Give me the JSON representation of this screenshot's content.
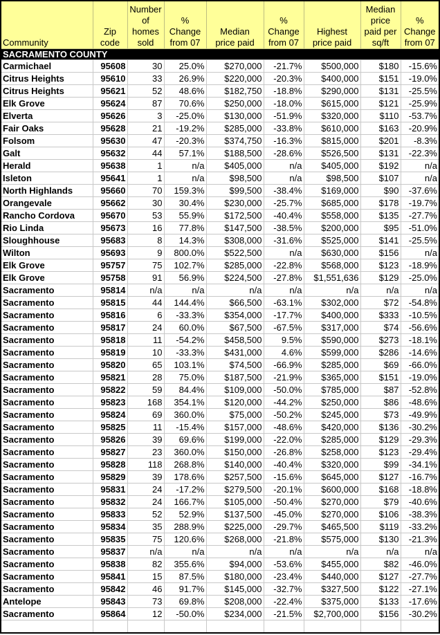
{
  "columns": [
    "Community",
    "Zip\ncode",
    "Number\nof\nhomes\nsold",
    "%\nChange\nfrom 07",
    "Median\nprice paid",
    "%\nChange\nfrom 07",
    "Highest\nprice paid",
    "Median\nprice\npaid per\nsq/ft",
    "%\nChange\nfrom 07"
  ],
  "section": "SACRAMENTO COUNTY",
  "rows": [
    [
      "Carmichael",
      "95608",
      "30",
      "25.0%",
      "$270,000",
      "-21.7%",
      "$500,000",
      "$180",
      "-15.6%"
    ],
    [
      "Citrus Heights",
      "95610",
      "33",
      "26.9%",
      "$220,000",
      "-20.3%",
      "$400,000",
      "$151",
      "-19.0%"
    ],
    [
      "Citrus Heights",
      "95621",
      "52",
      "48.6%",
      "$182,750",
      "-18.8%",
      "$290,000",
      "$131",
      "-25.5%"
    ],
    [
      "Elk Grove",
      "95624",
      "87",
      "70.6%",
      "$250,000",
      "-18.0%",
      "$615,000",
      "$121",
      "-25.9%"
    ],
    [
      "Elverta",
      "95626",
      "3",
      "-25.0%",
      "$130,000",
      "-51.9%",
      "$320,000",
      "$110",
      "-53.7%"
    ],
    [
      "Fair Oaks",
      "95628",
      "21",
      "-19.2%",
      "$285,000",
      "-33.8%",
      "$610,000",
      "$163",
      "-20.9%"
    ],
    [
      "Folsom",
      "95630",
      "47",
      "-20.3%",
      "$374,750",
      "-16.3%",
      "$815,000",
      "$201",
      "-8.3%"
    ],
    [
      "Galt",
      "95632",
      "44",
      "57.1%",
      "$188,500",
      "-28.6%",
      "$526,500",
      "$131",
      "-22.3%"
    ],
    [
      "Herald",
      "95638",
      "1",
      "n/a",
      "$405,000",
      "n/a",
      "$405,000",
      "$192",
      "n/a"
    ],
    [
      "Isleton",
      "95641",
      "1",
      "n/a",
      "$98,500",
      "n/a",
      "$98,500",
      "$107",
      "n/a"
    ],
    [
      "North Highlands",
      "95660",
      "70",
      "159.3%",
      "$99,500",
      "-38.4%",
      "$169,000",
      "$90",
      "-37.6%"
    ],
    [
      "Orangevale",
      "95662",
      "30",
      "30.4%",
      "$230,000",
      "-25.7%",
      "$685,000",
      "$178",
      "-19.7%"
    ],
    [
      "Rancho Cordova",
      "95670",
      "53",
      "55.9%",
      "$172,500",
      "-40.4%",
      "$558,000",
      "$135",
      "-27.7%"
    ],
    [
      "Rio Linda",
      "95673",
      "16",
      "77.8%",
      "$147,500",
      "-38.5%",
      "$200,000",
      "$95",
      "-51.0%"
    ],
    [
      "Sloughhouse",
      "95683",
      "8",
      "14.3%",
      "$308,000",
      "-31.6%",
      "$525,000",
      "$141",
      "-25.5%"
    ],
    [
      "Wilton",
      "95693",
      "9",
      "800.0%",
      "$522,500",
      "n/a",
      "$630,000",
      "$156",
      "n/a"
    ],
    [
      "Elk Grove",
      "95757",
      "75",
      "102.7%",
      "$285,000",
      "-22.8%",
      "$568,000",
      "$123",
      "-18.9%"
    ],
    [
      "Elk Grove",
      "95758",
      "91",
      "56.9%",
      "$224,500",
      "-27.8%",
      "$1,551,636",
      "$129",
      "-25.0%"
    ],
    [
      "Sacramento",
      "95814",
      "n/a",
      "n/a",
      "n/a",
      "n/a",
      "n/a",
      "n/a",
      "n/a"
    ],
    [
      "Sacramento",
      "95815",
      "44",
      "144.4%",
      "$66,500",
      "-63.1%",
      "$302,000",
      "$72",
      "-54.8%"
    ],
    [
      "Sacramento",
      "95816",
      "6",
      "-33.3%",
      "$354,000",
      "-17.7%",
      "$400,000",
      "$333",
      "-10.5%"
    ],
    [
      "Sacramento",
      "95817",
      "24",
      "60.0%",
      "$67,500",
      "-67.5%",
      "$317,000",
      "$74",
      "-56.6%"
    ],
    [
      "Sacramento",
      "95818",
      "11",
      "-54.2%",
      "$458,500",
      "9.5%",
      "$590,000",
      "$273",
      "-18.1%"
    ],
    [
      "Sacramento",
      "95819",
      "10",
      "-33.3%",
      "$431,000",
      "4.6%",
      "$599,000",
      "$286",
      "-14.6%"
    ],
    [
      "Sacramento",
      "95820",
      "65",
      "103.1%",
      "$74,500",
      "-66.9%",
      "$285,000",
      "$69",
      "-66.0%"
    ],
    [
      "Sacramento",
      "95821",
      "28",
      "75.0%",
      "$187,500",
      "-21.9%",
      "$365,000",
      "$151",
      "-19.0%"
    ],
    [
      "Sacramento",
      "95822",
      "59",
      "84.4%",
      "$109,000",
      "-50.0%",
      "$785,000",
      "$87",
      "-52.8%"
    ],
    [
      "Sacramento",
      "95823",
      "168",
      "354.1%",
      "$120,000",
      "-44.2%",
      "$250,000",
      "$86",
      "-48.6%"
    ],
    [
      "Sacramento",
      "95824",
      "69",
      "360.0%",
      "$75,000",
      "-50.2%",
      "$245,000",
      "$73",
      "-49.9%"
    ],
    [
      "Sacramento",
      "95825",
      "11",
      "-15.4%",
      "$157,000",
      "-48.6%",
      "$420,000",
      "$136",
      "-30.2%"
    ],
    [
      "Sacramento",
      "95826",
      "39",
      "69.6%",
      "$199,000",
      "-22.0%",
      "$285,000",
      "$129",
      "-29.3%"
    ],
    [
      "Sacramento",
      "95827",
      "23",
      "360.0%",
      "$150,000",
      "-26.8%",
      "$258,000",
      "$123",
      "-29.4%"
    ],
    [
      "Sacramento",
      "95828",
      "118",
      "268.8%",
      "$140,000",
      "-40.4%",
      "$320,000",
      "$99",
      "-34.1%"
    ],
    [
      "Sacramento",
      "95829",
      "39",
      "178.6%",
      "$257,500",
      "-15.6%",
      "$645,000",
      "$127",
      "-16.7%"
    ],
    [
      "Sacramento",
      "95831",
      "24",
      "-17.2%",
      "$279,500",
      "-20.1%",
      "$600,000",
      "$168",
      "-18.8%"
    ],
    [
      "Sacramento",
      "95832",
      "24",
      "166.7%",
      "$105,000",
      "-50.4%",
      "$270,000",
      "$79",
      "-40.6%"
    ],
    [
      "Sacramento",
      "95833",
      "52",
      "52.9%",
      "$137,500",
      "-45.0%",
      "$270,000",
      "$106",
      "-38.3%"
    ],
    [
      "Sacramento",
      "95834",
      "35",
      "288.9%",
      "$225,000",
      "-29.7%",
      "$465,500",
      "$119",
      "-33.2%"
    ],
    [
      "Sacramento",
      "95835",
      "75",
      "120.6%",
      "$268,000",
      "-21.8%",
      "$575,000",
      "$130",
      "-21.3%"
    ],
    [
      "Sacramento",
      "95837",
      "n/a",
      "n/a",
      "n/a",
      "n/a",
      "n/a",
      "n/a",
      "n/a"
    ],
    [
      "Sacramento",
      "95838",
      "82",
      "355.6%",
      "$94,000",
      "-53.6%",
      "$455,000",
      "$82",
      "-46.0%"
    ],
    [
      "Sacramento",
      "95841",
      "15",
      "87.5%",
      "$180,000",
      "-23.4%",
      "$440,000",
      "$127",
      "-27.7%"
    ],
    [
      "Sacramento",
      "95842",
      "46",
      "91.7%",
      "$145,000",
      "-32.7%",
      "$327,500",
      "$122",
      "-27.1%"
    ],
    [
      "Antelope",
      "95843",
      "73",
      "69.8%",
      "$208,000",
      "-22.4%",
      "$375,000",
      "$133",
      "-17.6%"
    ],
    [
      "Sacramento",
      "95864",
      "12",
      "-50.0%",
      "$234,000",
      "-21.5%",
      "$2,700,000",
      "$156",
      "-30.2%"
    ]
  ]
}
